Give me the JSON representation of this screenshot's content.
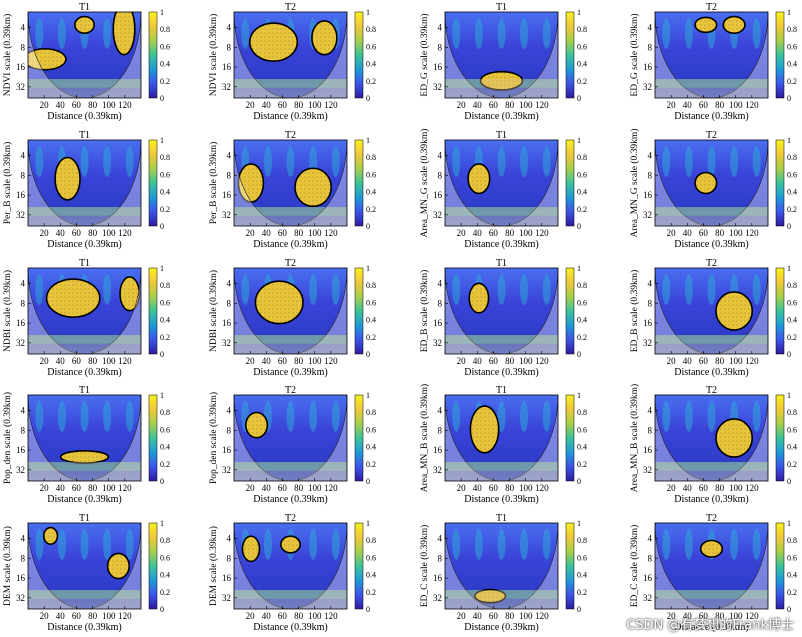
{
  "watermark": "CSDN @有梦想的Frank博士",
  "chart_data": {
    "type": "heatmap",
    "kind": "wavelet coherence panels",
    "colorbar": {
      "ticks": [
        "0",
        "0.2",
        "0.4",
        "0.6",
        "0.8",
        "1"
      ],
      "range": [
        0,
        1
      ],
      "colors": [
        "#2f1b9e",
        "#3d55e6",
        "#1e9ad6",
        "#3cc29a",
        "#a8cf4a",
        "#f0c83a",
        "#f8f21f"
      ]
    },
    "x_ticks": [
      "20",
      "40",
      "60",
      "80",
      "100",
      "120"
    ],
    "x_range": [
      0,
      140
    ],
    "y_ticks": [
      "4",
      "8",
      "16",
      "32"
    ],
    "xlabel": "Distance (0.39km)",
    "panels": [
      {
        "title": "T1",
        "ylabel": "NDVI scale (0.39km)",
        "blobs": [
          [
            0.15,
            0.55,
            0.3,
            0.15
          ],
          [
            0.85,
            0.2,
            0.12,
            0.5
          ],
          [
            0.5,
            0.15,
            0.1,
            0.1
          ]
        ]
      },
      {
        "title": "T2",
        "ylabel": "NDVI scale (0.39km)",
        "blobs": [
          [
            0.35,
            0.35,
            0.35,
            0.35
          ],
          [
            0.8,
            0.3,
            0.15,
            0.3
          ]
        ]
      },
      {
        "title": "T1",
        "ylabel": "ED_G scale (0.39km)",
        "blobs": [
          [
            0.5,
            0.8,
            0.3,
            0.12
          ]
        ]
      },
      {
        "title": "T2",
        "ylabel": "ED_G scale (0.39km)",
        "blobs": [
          [
            0.45,
            0.15,
            0.12,
            0.08
          ],
          [
            0.7,
            0.15,
            0.12,
            0.1
          ]
        ]
      },
      {
        "title": "T1",
        "ylabel": "Per_B scale (0.39km)",
        "blobs": [
          [
            0.35,
            0.45,
            0.15,
            0.4
          ]
        ]
      },
      {
        "title": "T2",
        "ylabel": "Per_B scale (0.39km)",
        "blobs": [
          [
            0.15,
            0.5,
            0.15,
            0.35
          ],
          [
            0.7,
            0.55,
            0.25,
            0.35
          ]
        ]
      },
      {
        "title": "T1",
        "ylabel": "Area_MN_G scale (0.39km)",
        "blobs": [
          [
            0.3,
            0.45,
            0.12,
            0.25
          ]
        ]
      },
      {
        "title": "T2",
        "ylabel": "Area_MN_G scale (0.39km)",
        "blobs": [
          [
            0.45,
            0.5,
            0.12,
            0.15
          ]
        ]
      },
      {
        "title": "T1",
        "ylabel": "NDBI scale (0.39km)",
        "blobs": [
          [
            0.4,
            0.35,
            0.4,
            0.35
          ],
          [
            0.9,
            0.3,
            0.1,
            0.3
          ]
        ]
      },
      {
        "title": "T2",
        "ylabel": "NDBI scale (0.39km)",
        "blobs": [
          [
            0.4,
            0.4,
            0.35,
            0.4
          ]
        ]
      },
      {
        "title": "T1",
        "ylabel": "ED_B scale (0.39km)",
        "blobs": [
          [
            0.3,
            0.35,
            0.1,
            0.25
          ]
        ]
      },
      {
        "title": "T2",
        "ylabel": "ED_B scale (0.39km)",
        "blobs": [
          [
            0.7,
            0.5,
            0.25,
            0.35
          ]
        ]
      },
      {
        "title": "T1",
        "ylabel": "Pop_den scale (0.39km)",
        "blobs": [
          [
            0.5,
            0.72,
            0.35,
            0.05
          ]
        ]
      },
      {
        "title": "T2",
        "ylabel": "Pop_den scale (0.39km)",
        "blobs": [
          [
            0.2,
            0.35,
            0.12,
            0.2
          ]
        ]
      },
      {
        "title": "T1",
        "ylabel": "Area_MN_B scale (0.39km)",
        "blobs": [
          [
            0.35,
            0.4,
            0.18,
            0.45
          ]
        ]
      },
      {
        "title": "T2",
        "ylabel": "Area_MN_B scale (0.39km)",
        "blobs": [
          [
            0.7,
            0.5,
            0.25,
            0.35
          ]
        ]
      },
      {
        "title": "T1",
        "ylabel": "DEM scale (0.39km)",
        "blobs": [
          [
            0.2,
            0.15,
            0.05,
            0.1
          ],
          [
            0.8,
            0.5,
            0.12,
            0.2
          ]
        ]
      },
      {
        "title": "T2",
        "ylabel": "DEM scale (0.39km)",
        "blobs": [
          [
            0.15,
            0.3,
            0.08,
            0.2
          ],
          [
            0.5,
            0.25,
            0.1,
            0.1
          ]
        ]
      },
      {
        "title": "T1",
        "ylabel": "ED_C scale (0.39km)",
        "blobs": [
          [
            0.4,
            0.85,
            0.2,
            0.06
          ]
        ]
      },
      {
        "title": "T2",
        "ylabel": "ED_C scale (0.39km)",
        "blobs": [
          [
            0.5,
            0.3,
            0.12,
            0.1
          ]
        ]
      }
    ]
  }
}
